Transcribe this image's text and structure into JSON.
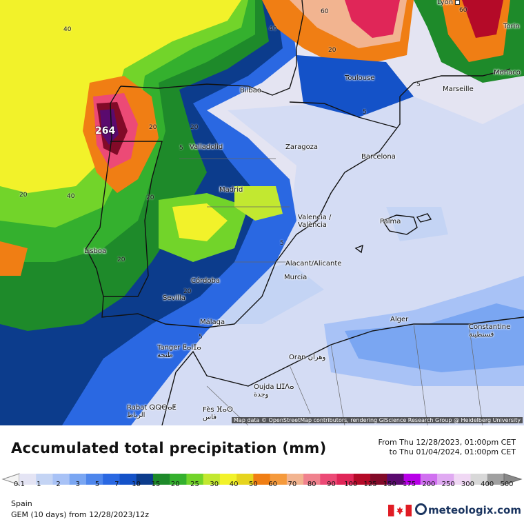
{
  "header": {
    "title": "Accumulated total precipitation (mm)",
    "from_line": "From Thu 12/28/2023, 01:00pm CET",
    "to_line": "to Thu 01/04/2024, 01:00pm CET"
  },
  "map": {
    "attribution": "Map data © OpenStreetMap contributors, rendering GIScience Research Group @ Heidelberg University",
    "cities": [
      {
        "name": "Lyon"
      },
      {
        "name": "Torin"
      },
      {
        "name": "Monaco"
      },
      {
        "name": "Bilbao"
      },
      {
        "name": "Toulouse"
      },
      {
        "name": "Marseille"
      },
      {
        "name": "Valladolid"
      },
      {
        "name": "Zaragoza"
      },
      {
        "name": "Barcelona"
      },
      {
        "name": "Madrid"
      },
      {
        "name": "Valencia / València"
      },
      {
        "name": "Palma"
      },
      {
        "name": "Lisboa"
      },
      {
        "name": "Alacant/Alicante"
      },
      {
        "name": "Murcia"
      },
      {
        "name": "Córdoba"
      },
      {
        "name": "Sevilla"
      },
      {
        "name": "Málaga"
      },
      {
        "name": "Alger"
      },
      {
        "name": "Constantine قسنطينة"
      },
      {
        "name": "Tanger ⵟⴰⵏⵊⴰ طنجة"
      },
      {
        "name": "Oran وهران"
      },
      {
        "name": "Oujda ⵡⵊⴷⴰ وجدة"
      },
      {
        "name": "Rabat ⵕⵕⴱⴰⵟ الرباط"
      },
      {
        "name": "Fès ⴼⴰⵙ فاس"
      }
    ],
    "contour_labels": [
      "40",
      "60",
      "40",
      "60",
      "20",
      "5",
      "20",
      "5",
      "20",
      "264",
      "5",
      "20",
      "40",
      "20",
      "20",
      "5",
      "20",
      "5",
      "20",
      "5",
      "20"
    ]
  },
  "legend": {
    "ticks": [
      "0.1",
      "1",
      "2",
      "3",
      "5",
      "7",
      "10",
      "15",
      "20",
      "25",
      "30",
      "40",
      "50",
      "60",
      "70",
      "80",
      "90",
      "100",
      "125",
      "150",
      "175",
      "200",
      "250",
      "300",
      "400",
      "500"
    ],
    "colors": [
      "#e4e4f4",
      "#c4d4f4",
      "#a8c2f6",
      "#7aa6f2",
      "#4e86ec",
      "#2a68e2",
      "#1452c8",
      "#0c3c8c",
      "#1e8a2a",
      "#34b02e",
      "#72d42a",
      "#c2e830",
      "#f2f22a",
      "#e6d41e",
      "#f07e14",
      "#f59a3c",
      "#f2b490",
      "#f0828e",
      "#ec4a76",
      "#e02658",
      "#b40a28",
      "#820a28",
      "#5a0a6e",
      "#b800e8",
      "#d070f0",
      "#e0aaf2",
      "#f0d8f4",
      "#d8d8d8",
      "#a0a0a0"
    ]
  },
  "footer": {
    "region": "Spain",
    "model": "GEM (10 days) from 12/28/2023/12z",
    "brand": "meteologix.com"
  },
  "palette": {
    "land_dry": "#e4e4f2",
    "border": "#111111",
    "brand": "#1b3560"
  }
}
